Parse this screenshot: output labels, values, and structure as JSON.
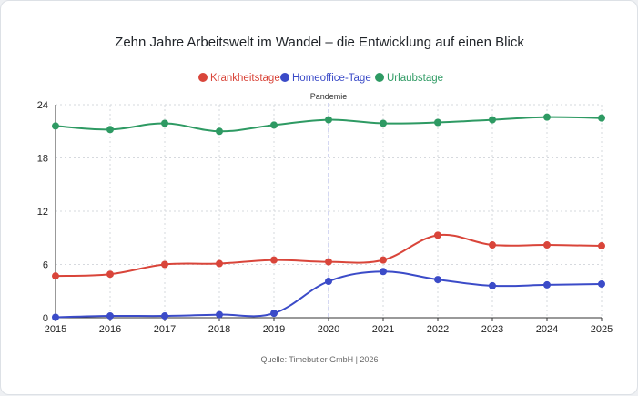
{
  "chart_data": {
    "type": "line",
    "title": "Zehn Jahre Arbeitswelt im Wandel – die Entwicklung auf einen Blick",
    "x": [
      "2015",
      "2016",
      "2017",
      "2018",
      "2019",
      "2020",
      "2021",
      "2022",
      "2023",
      "2024",
      "2025"
    ],
    "series": [
      {
        "name": "Krankheitstage",
        "color": "#d9453a",
        "values": [
          4.7,
          4.9,
          6.0,
          6.1,
          6.5,
          6.3,
          6.5,
          9.3,
          8.2,
          8.2,
          8.1
        ]
      },
      {
        "name": "Homeoffice-Tage",
        "color": "#3b4bc8",
        "values": [
          0.05,
          0.2,
          0.2,
          0.35,
          0.5,
          4.1,
          5.2,
          4.3,
          3.6,
          3.7,
          3.8
        ]
      },
      {
        "name": "Urlaubstage",
        "color": "#2e9a63",
        "values": [
          21.6,
          21.2,
          21.9,
          21.0,
          21.7,
          22.3,
          21.9,
          22.0,
          22.3,
          22.6,
          22.5
        ]
      }
    ],
    "ylim": [
      0,
      24
    ],
    "yticks": [
      "0",
      "6",
      "12",
      "18",
      "24"
    ],
    "legend_position": "top-center",
    "grid": true,
    "annotation": {
      "x": "2020",
      "label": "Pandemie"
    },
    "source": "Quelle: Timebutler GmbH | 2026"
  }
}
